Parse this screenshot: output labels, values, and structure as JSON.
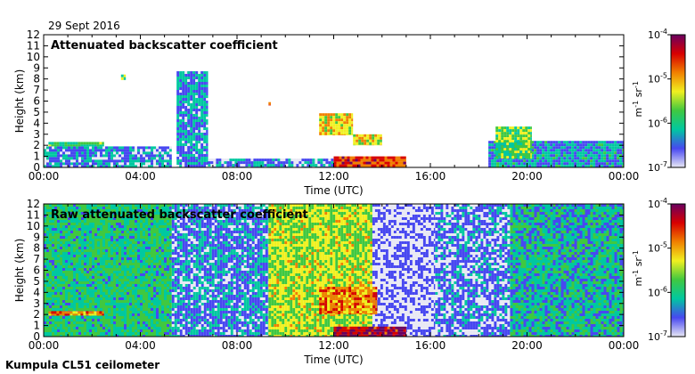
{
  "header": {
    "date": "29 Sept 2016"
  },
  "footer": {
    "instrument": "Kumpula CL51 ceilometer"
  },
  "colorbar": {
    "unit_text": "m",
    "unit_exp1": "-1",
    "unit_mid": " sr",
    "unit_exp2": "-1",
    "tick_base": "10",
    "tick_exponents": [
      "-4",
      "-5",
      "-6",
      "-7"
    ],
    "colors": [
      "#e8e8f4",
      "#4848f0",
      "#00c8a0",
      "#40c840",
      "#f0f020",
      "#f08000",
      "#d80000",
      "#6a0060"
    ]
  },
  "chart_data": [
    {
      "type": "heatmap",
      "title": "Attenuated backscatter coefficient",
      "xlabel": "Time (UTC)",
      "ylabel": "Height (km)",
      "x_ticks": [
        "00:00",
        "04:00",
        "08:00",
        "12:00",
        "16:00",
        "20:00",
        "00:00"
      ],
      "xlim_hours": [
        0,
        24
      ],
      "y_ticks": [
        0,
        1,
        2,
        3,
        4,
        5,
        6,
        7,
        8,
        9,
        10,
        11,
        12
      ],
      "ylim_km": [
        0,
        12
      ],
      "colorscale_range": [
        "1e-7",
        "1e-4"
      ],
      "regions": [
        {
          "t0": 0.0,
          "t1": 5.3,
          "h0": 0.0,
          "h1": 1.9,
          "level": 1.1
        },
        {
          "t0": 0.2,
          "t1": 2.5,
          "h0": 1.9,
          "h1": 2.3,
          "level": 2.8
        },
        {
          "t0": 3.2,
          "t1": 3.4,
          "h0": 7.9,
          "h1": 8.4,
          "level": 3.3
        },
        {
          "t0": 5.5,
          "t1": 6.8,
          "h0": 0.0,
          "h1": 8.7,
          "level": 1.4
        },
        {
          "t0": 6.8,
          "t1": 12.0,
          "h0": 0.0,
          "h1": 0.8,
          "level": 1.1
        },
        {
          "t0": 9.3,
          "t1": 9.4,
          "h0": 5.6,
          "h1": 5.9,
          "level": 5.4
        },
        {
          "t0": 11.4,
          "t1": 12.8,
          "h0": 2.9,
          "h1": 4.9,
          "level": 4.2
        },
        {
          "t0": 12.8,
          "t1": 14.0,
          "h0": 2.0,
          "h1": 3.0,
          "level": 4.0
        },
        {
          "t0": 12.0,
          "t1": 15.0,
          "h0": 0.0,
          "h1": 1.0,
          "level": 5.6
        },
        {
          "t0": 18.4,
          "t1": 24.0,
          "h0": 0.0,
          "h1": 2.4,
          "level": 1.6
        },
        {
          "t0": 18.7,
          "t1": 20.2,
          "h0": 0.8,
          "h1": 3.7,
          "level": 3.1
        }
      ]
    },
    {
      "type": "heatmap",
      "title": "Raw attenuated backscatter coefficient",
      "xlabel": "Time (UTC)",
      "ylabel": "Height (km)",
      "x_ticks": [
        "00:00",
        "04:00",
        "08:00",
        "12:00",
        "16:00",
        "20:00",
        "00:00"
      ],
      "xlim_hours": [
        0,
        24
      ],
      "y_ticks": [
        0,
        1,
        2,
        3,
        4,
        5,
        6,
        7,
        8,
        9,
        10,
        11,
        12
      ],
      "ylim_km": [
        0,
        12
      ],
      "colorscale_range": [
        "1e-7",
        "1e-4"
      ],
      "regions": [
        {
          "t0": 0.0,
          "t1": 5.3,
          "h0": 0.0,
          "h1": 12.0,
          "level": 2.4
        },
        {
          "t0": 5.3,
          "t1": 9.3,
          "h0": 0.0,
          "h1": 12.0,
          "level": 1.2
        },
        {
          "t0": 9.3,
          "t1": 13.6,
          "h0": 0.0,
          "h1": 12.0,
          "level": 3.6
        },
        {
          "t0": 13.6,
          "t1": 16.2,
          "h0": 0.0,
          "h1": 12.0,
          "level": 0.4
        },
        {
          "t0": 16.2,
          "t1": 19.3,
          "h0": 0.0,
          "h1": 12.0,
          "level": 0.9
        },
        {
          "t0": 19.3,
          "t1": 24.0,
          "h0": 0.0,
          "h1": 12.0,
          "level": 2.0
        },
        {
          "t0": 0.2,
          "t1": 2.5,
          "h0": 1.9,
          "h1": 2.3,
          "level": 5.0
        },
        {
          "t0": 11.4,
          "t1": 13.8,
          "h0": 2.0,
          "h1": 4.5,
          "level": 5.0
        },
        {
          "t0": 12.0,
          "t1": 15.0,
          "h0": 0.0,
          "h1": 0.9,
          "level": 6.5
        }
      ]
    }
  ]
}
